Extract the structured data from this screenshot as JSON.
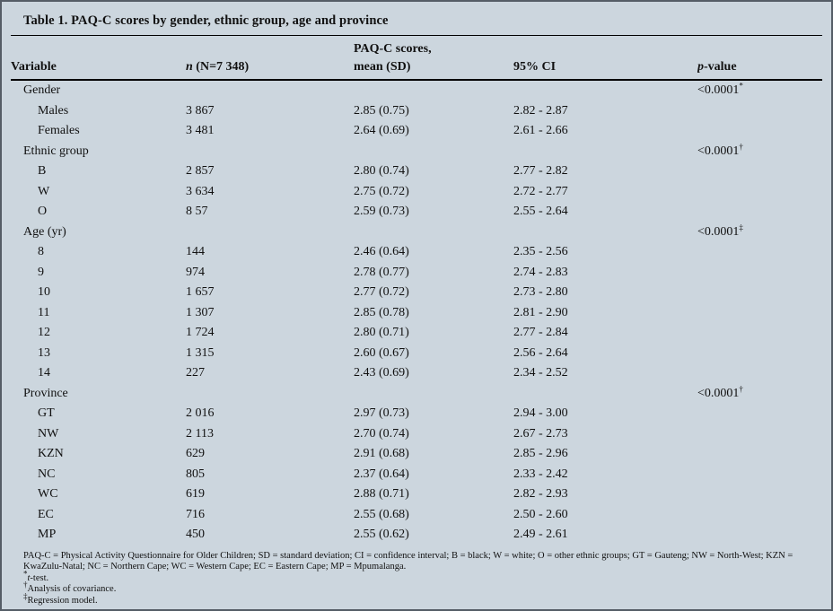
{
  "table": {
    "title": "Table 1. PAQ-C scores by gender, ethnic group, age and province",
    "header": {
      "variable": "Variable",
      "n_italic": "n",
      "n_rest": " (N=7 348)",
      "scores_line1": "PAQ-C scores,",
      "scores_line2": "mean (SD)",
      "ci": "95% CI",
      "p_italic": "p",
      "p_rest": "-value"
    },
    "rows": [
      {
        "label": "Gender",
        "group": true,
        "p": "<0.0001",
        "p_marker": "*"
      },
      {
        "label": "Males",
        "n": "3 867",
        "mean_sd": "2.85 (0.75)",
        "ci": "2.82 - 2.87"
      },
      {
        "label": "Females",
        "n": "3 481",
        "mean_sd": "2.64 (0.69)",
        "ci": "2.61 - 2.66"
      },
      {
        "label": "Ethnic group",
        "group": true,
        "p": "<0.0001",
        "p_marker": "†"
      },
      {
        "label": "B",
        "n": "2 857",
        "mean_sd": "2.80 (0.74)",
        "ci": "2.77 - 2.82"
      },
      {
        "label": "W",
        "n": "3 634",
        "mean_sd": "2.75 (0.72)",
        "ci": "2.72 - 2.77"
      },
      {
        "label": "O",
        "n": "8 57",
        "mean_sd": "2.59 (0.73)",
        "ci": "2.55 - 2.64"
      },
      {
        "label": "Age (yr)",
        "group": true,
        "p": "<0.0001",
        "p_marker": "‡"
      },
      {
        "label": "8",
        "n": "144",
        "mean_sd": "2.46 (0.64)",
        "ci": "2.35 - 2.56"
      },
      {
        "label": "9",
        "n": "974",
        "mean_sd": "2.78 (0.77)",
        "ci": "2.74 - 2.83"
      },
      {
        "label": "10",
        "n": "1 657",
        "mean_sd": "2.77 (0.72)",
        "ci": "2.73 - 2.80"
      },
      {
        "label": "11",
        "n": "1 307",
        "mean_sd": "2.85 (0.78)",
        "ci": "2.81 - 2.90"
      },
      {
        "label": "12",
        "n": "1 724",
        "mean_sd": "2.80 (0.71)",
        "ci": "2.77 - 2.84"
      },
      {
        "label": "13",
        "n": "1 315",
        "mean_sd": "2.60 (0.67)",
        "ci": "2.56 - 2.64"
      },
      {
        "label": "14",
        "n": "227",
        "mean_sd": "2.43 (0.69)",
        "ci": "2.34 - 2.52"
      },
      {
        "label": "Province",
        "group": true,
        "p": "<0.0001",
        "p_marker": "†"
      },
      {
        "label": "GT",
        "n": "2 016",
        "mean_sd": "2.97 (0.73)",
        "ci": "2.94 - 3.00"
      },
      {
        "label": "NW",
        "n": "2 113",
        "mean_sd": "2.70 (0.74)",
        "ci": "2.67 - 2.73"
      },
      {
        "label": "KZN",
        "n": "629",
        "mean_sd": "2.91 (0.68)",
        "ci": "2.85 - 2.96"
      },
      {
        "label": "NC",
        "n": "805",
        "mean_sd": "2.37 (0.64)",
        "ci": "2.33 - 2.42"
      },
      {
        "label": "WC",
        "n": "619",
        "mean_sd": "2.88 (0.71)",
        "ci": "2.82 - 2.93"
      },
      {
        "label": "EC",
        "n": "716",
        "mean_sd": "2.55 (0.68)",
        "ci": "2.50 - 2.60"
      },
      {
        "label": "MP",
        "n": "450",
        "mean_sd": "2.55 (0.62)",
        "ci": "2.49 - 2.61"
      }
    ]
  },
  "footnotes": {
    "abbreviations": "PAQ-C = Physical Activity Questionnaire for Older Children; SD = standard deviation; CI = confidence interval; B = black; W = white; O = other ethnic groups; GT = Gauteng; NW = North-West; KZN = KwaZulu-Natal; NC = Northern Cape; WC = Western Cape; EC = Eastern Cape; MP = Mpumalanga.",
    "note1": {
      "marker": "*",
      "text_italic": "t",
      "text": "-test."
    },
    "note2": {
      "marker": "†",
      "text": "Analysis of covariance."
    },
    "note3": {
      "marker": "‡",
      "text": "Regression model."
    }
  },
  "colors": {
    "panel_background": "#ccd6de",
    "rule": "#000000",
    "text": "#111111"
  }
}
